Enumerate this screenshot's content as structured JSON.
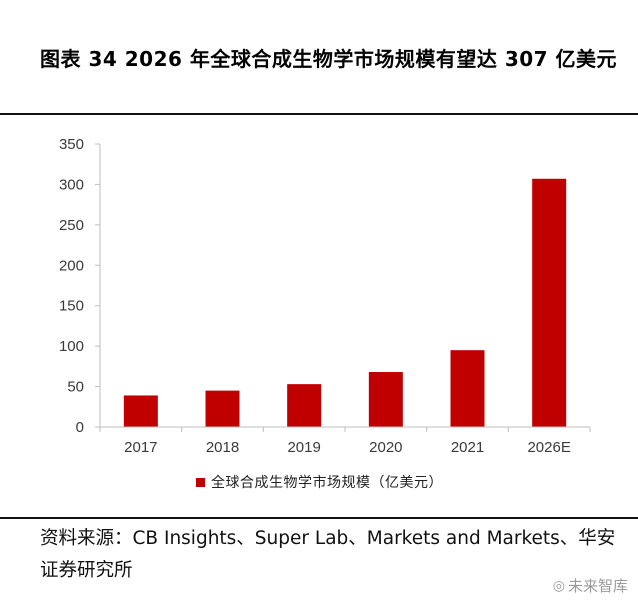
{
  "title": "图表 34 2026 年全球合成生物学市场规模有望达 307 亿美元",
  "chart_data": {
    "type": "bar",
    "categories": [
      "2017",
      "2018",
      "2019",
      "2020",
      "2021",
      "2026E"
    ],
    "series": [
      {
        "name": "全球合成生物学市场规模（亿美元）",
        "values": [
          39,
          45,
          53,
          68,
          95,
          307
        ]
      }
    ],
    "ylim": [
      0,
      350
    ],
    "yticks": [
      0,
      50,
      100,
      150,
      200,
      250,
      300,
      350
    ],
    "grid": false,
    "legend": "bottom",
    "bar_color": "#c00000"
  },
  "source": "资料来源：CB Insights、Super Lab、Markets and Markets、华安证券研究所",
  "watermark": {
    "icon": "wechat-logo-icon",
    "text": "未来智库"
  }
}
